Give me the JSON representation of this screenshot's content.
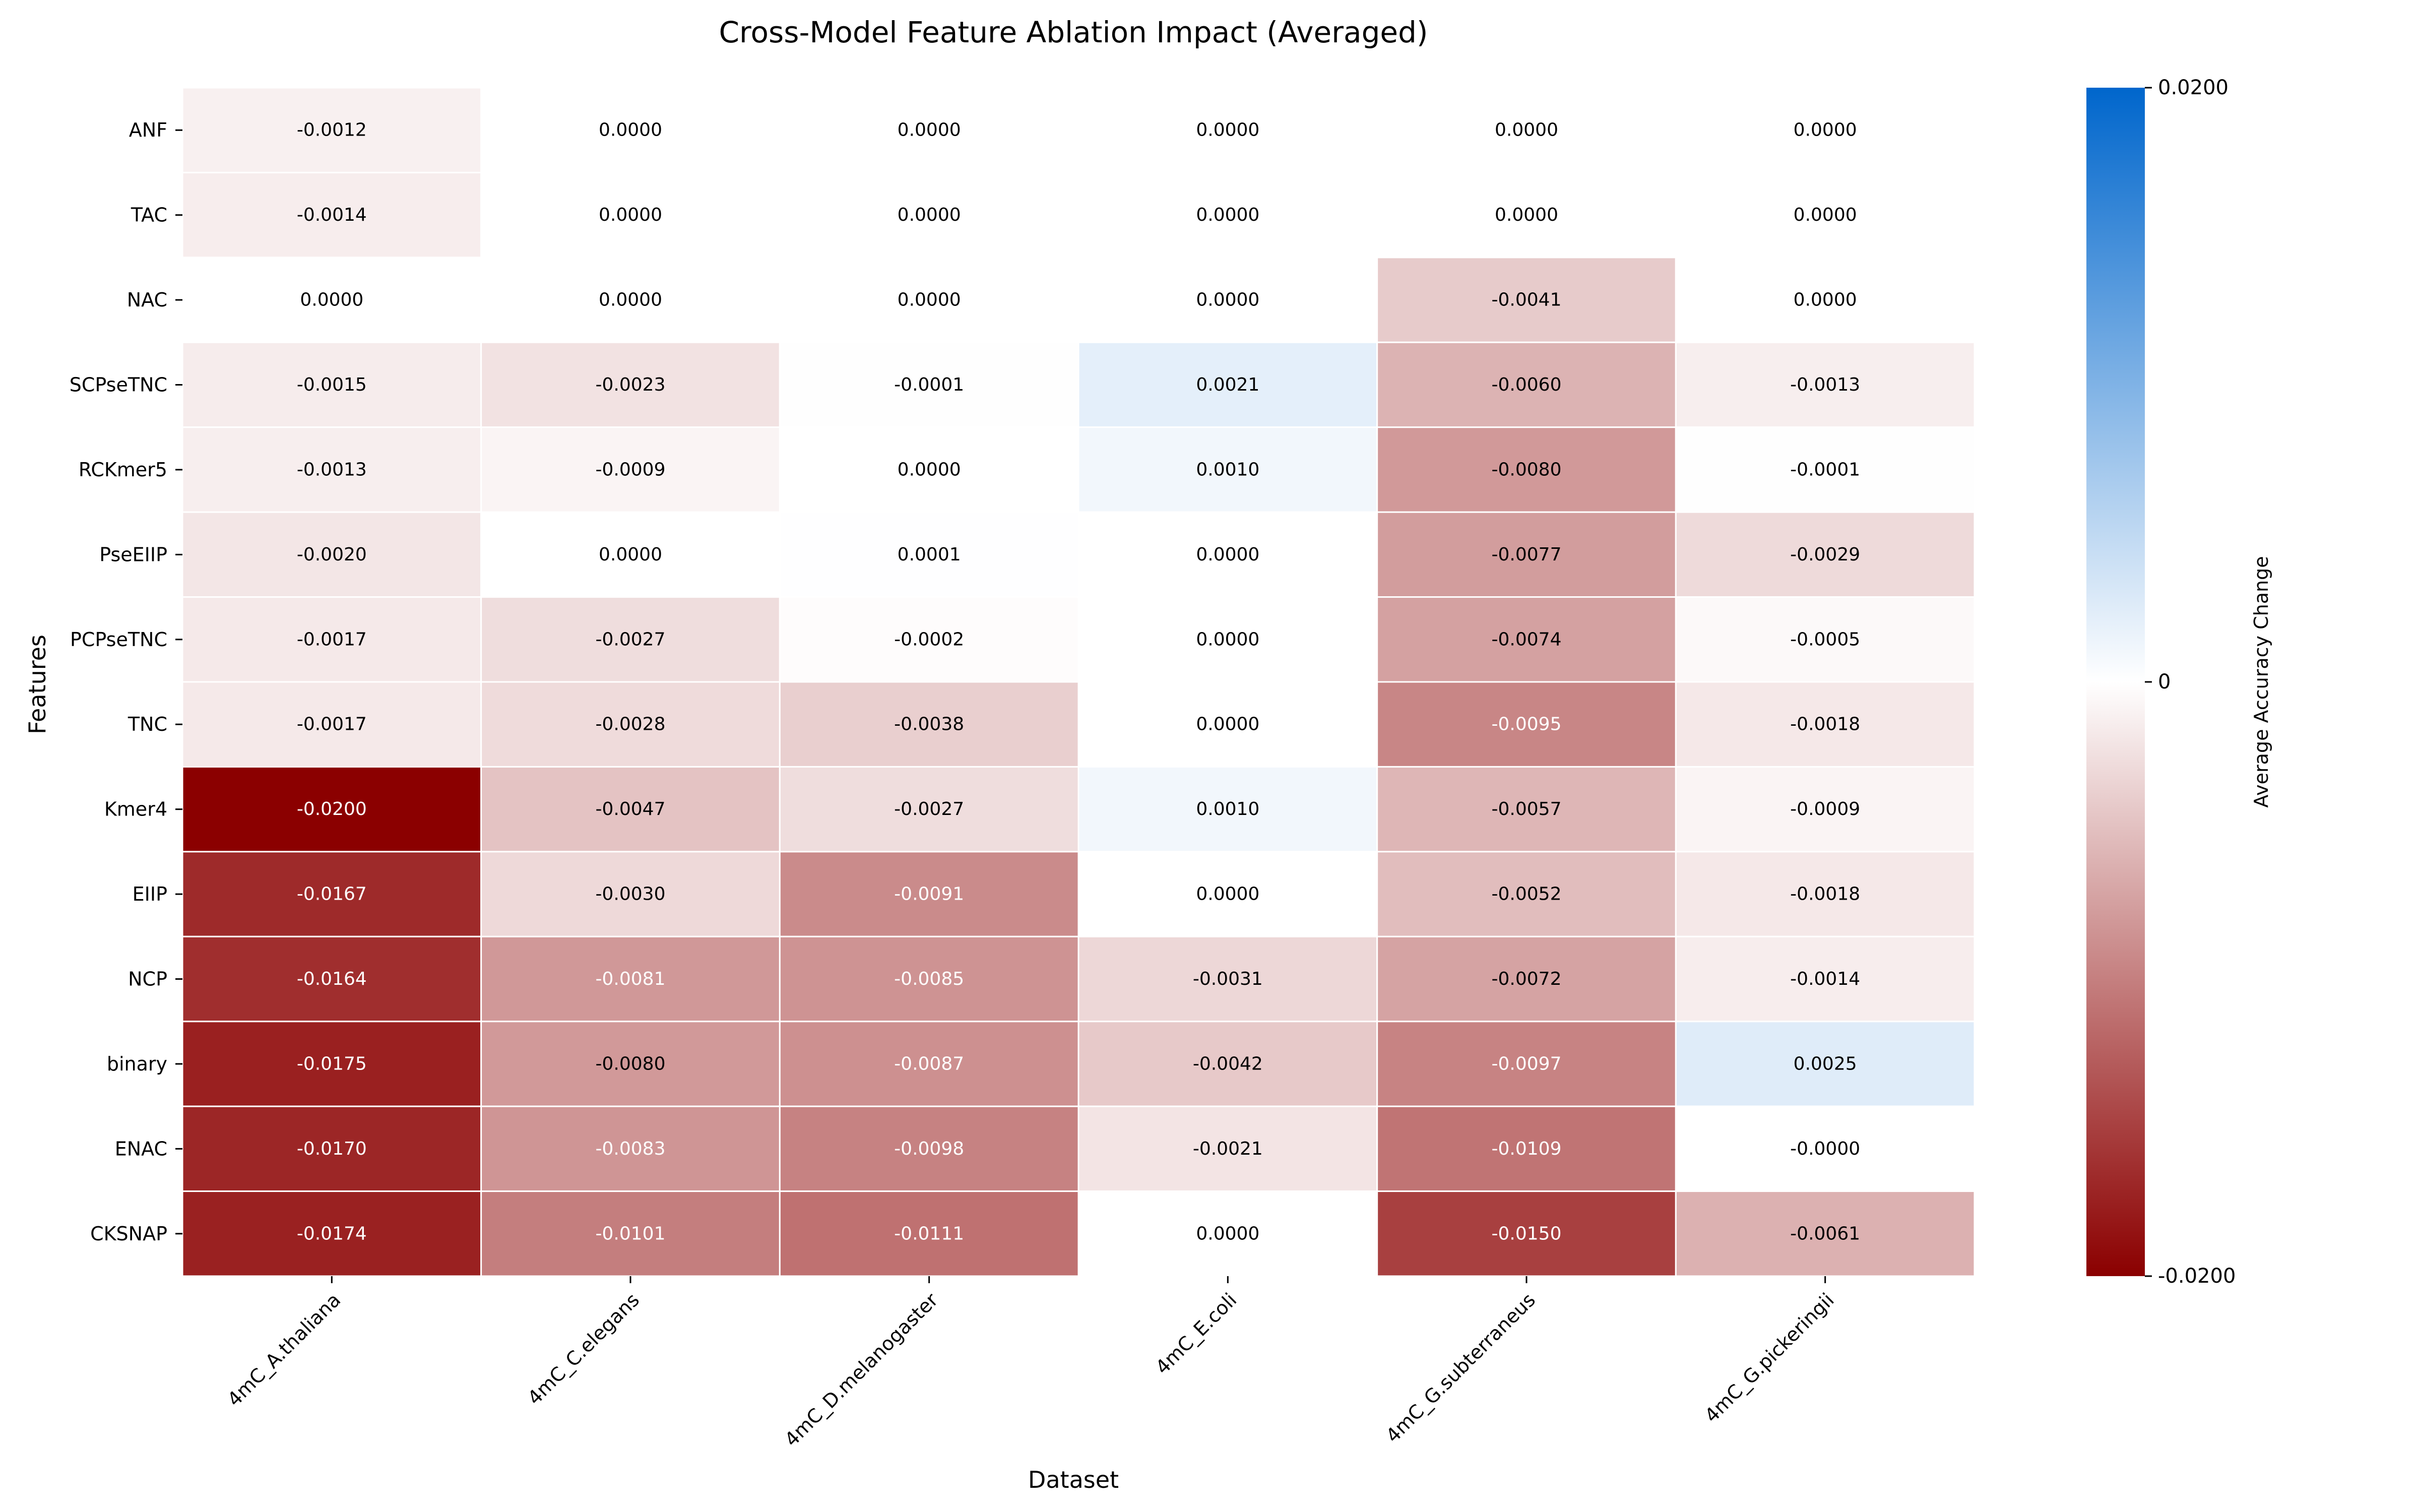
{
  "chart_data": {
    "type": "heatmap",
    "title": "Cross-Model Feature Ablation Impact (Averaged)",
    "xlabel": "Dataset",
    "ylabel": "Features",
    "x_categories": [
      "4mC_A.thaliana",
      "4mC_C.elegans",
      "4mC_D.melanogaster",
      "4mC_E.coli",
      "4mC_G.subterraneus",
      "4mC_G.pickeringii"
    ],
    "y_categories": [
      "ANF",
      "TAC",
      "NAC",
      "SCPseTNC",
      "RCKmer5",
      "PseEIIP",
      "PCPseTNC",
      "TNC",
      "Kmer4",
      "EIIP",
      "NCP",
      "binary",
      "ENAC",
      "CKSNAP"
    ],
    "values": [
      [
        -0.0012,
        0.0,
        0.0,
        0.0,
        0.0,
        0.0
      ],
      [
        -0.0014,
        0.0,
        0.0,
        0.0,
        0.0,
        0.0
      ],
      [
        0.0,
        0.0,
        0.0,
        0.0,
        -0.0041,
        0.0
      ],
      [
        -0.0015,
        -0.0023,
        -0.0001,
        0.0021,
        -0.006,
        -0.0013
      ],
      [
        -0.0013,
        -0.0009,
        0.0,
        0.001,
        -0.008,
        -0.0001
      ],
      [
        -0.002,
        0.0,
        0.0001,
        0.0,
        -0.0077,
        -0.0029
      ],
      [
        -0.0017,
        -0.0027,
        -0.0002,
        0.0,
        -0.0074,
        -0.0005
      ],
      [
        -0.0017,
        -0.0028,
        -0.0038,
        0.0,
        -0.0095,
        -0.0018
      ],
      [
        -0.02,
        -0.0047,
        -0.0027,
        0.001,
        -0.0057,
        -0.0009
      ],
      [
        -0.0167,
        -0.003,
        -0.0091,
        0.0,
        -0.0052,
        -0.0018
      ],
      [
        -0.0164,
        -0.0081,
        -0.0085,
        -0.0031,
        -0.0072,
        -0.0014
      ],
      [
        -0.0175,
        -0.008,
        -0.0087,
        -0.0042,
        -0.0097,
        0.0025
      ],
      [
        -0.017,
        -0.0083,
        -0.0098,
        -0.0021,
        -0.0109,
        -0.0
      ],
      [
        -0.0174,
        -0.0101,
        -0.0111,
        0.0,
        -0.015,
        -0.0061
      ]
    ],
    "value_labels": [
      [
        "-0.0012",
        "0.0000",
        "0.0000",
        "0.0000",
        "0.0000",
        "0.0000"
      ],
      [
        "-0.0014",
        "0.0000",
        "0.0000",
        "0.0000",
        "0.0000",
        "0.0000"
      ],
      [
        "0.0000",
        "0.0000",
        "0.0000",
        "0.0000",
        "-0.0041",
        "0.0000"
      ],
      [
        "-0.0015",
        "-0.0023",
        "-0.0001",
        "0.0021",
        "-0.0060",
        "-0.0013"
      ],
      [
        "-0.0013",
        "-0.0009",
        "0.0000",
        "0.0010",
        "-0.0080",
        "-0.0001"
      ],
      [
        "-0.0020",
        "0.0000",
        "0.0001",
        "0.0000",
        "-0.0077",
        "-0.0029"
      ],
      [
        "-0.0017",
        "-0.0027",
        "-0.0002",
        "0.0000",
        "-0.0074",
        "-0.0005"
      ],
      [
        "-0.0017",
        "-0.0028",
        "-0.0038",
        "0.0000",
        "-0.0095",
        "-0.0018"
      ],
      [
        "-0.0200",
        "-0.0047",
        "-0.0027",
        "0.0010",
        "-0.0057",
        "-0.0009"
      ],
      [
        "-0.0167",
        "-0.0030",
        "-0.0091",
        "0.0000",
        "-0.0052",
        "-0.0018"
      ],
      [
        "-0.0164",
        "-0.0081",
        "-0.0085",
        "-0.0031",
        "-0.0072",
        "-0.0014"
      ],
      [
        "-0.0175",
        "-0.0080",
        "-0.0087",
        "-0.0042",
        "-0.0097",
        "0.0025"
      ],
      [
        "-0.0170",
        "-0.0083",
        "-0.0098",
        "-0.0021",
        "-0.0109",
        "-0.0000"
      ],
      [
        "-0.0174",
        "-0.0101",
        "-0.0111",
        "0.0000",
        "-0.0150",
        "-0.0061"
      ]
    ],
    "colorbar": {
      "label": "Average Accuracy Change",
      "range": [
        -0.02,
        0.02
      ],
      "ticks": [
        0.02,
        0,
        -0.02
      ],
      "tick_labels": [
        "0.0200",
        "0",
        "-0.0200"
      ],
      "colormap": "diverging red-white-blue",
      "low_color": "#8b0000",
      "mid_color": "#ffffff",
      "high_color": "#0066cc"
    },
    "grid": false,
    "legend": "colorbar-right"
  }
}
